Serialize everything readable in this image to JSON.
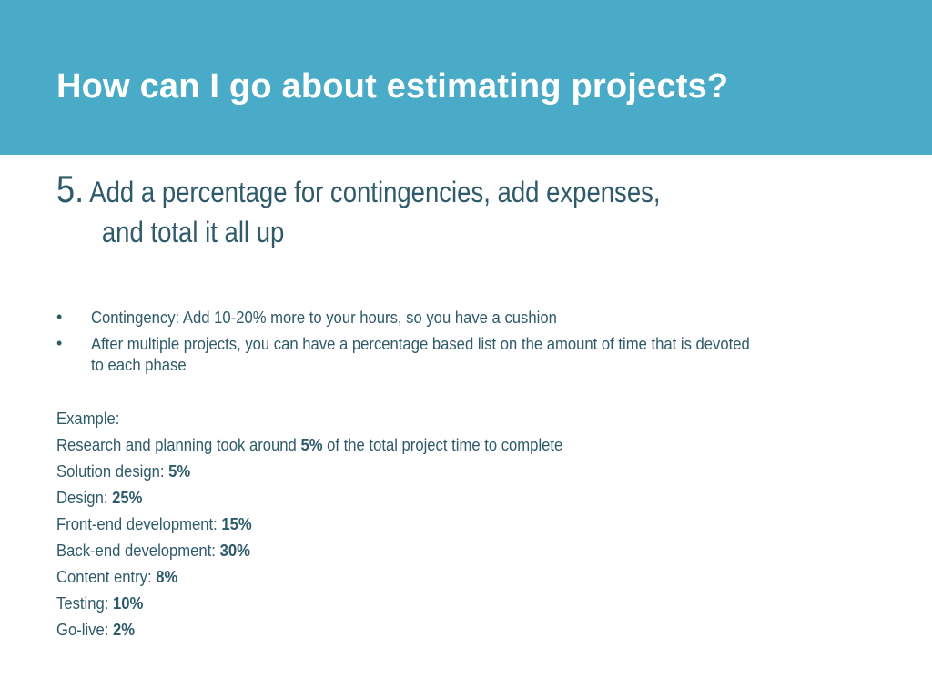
{
  "slide": {
    "title": "How can I go about estimating projects?",
    "step": {
      "number": "5.",
      "line1": "Add a percentage for contingencies, add expenses,",
      "line2": "and total it all up"
    },
    "bullets": [
      "Contingency: Add 10-20% more to your hours, so you have a cushion",
      "After multiple projects, you can have a percentage based list on the amount of time that is devoted",
      "to each phase"
    ],
    "example": {
      "label": "Example:",
      "research": {
        "prefix": "Research and planning took around ",
        "value": "5%",
        "suffix": " of the total project time to complete"
      },
      "phases": [
        {
          "label": "Solution design: ",
          "value": "5%"
        },
        {
          "label": "Design: ",
          "value": "25%"
        },
        {
          "label": "Front-end development: ",
          "value": "15%"
        },
        {
          "label": "Back-end development: ",
          "value": "30%"
        },
        {
          "label": "Content entry: ",
          "value": "8%"
        },
        {
          "label": "Testing: ",
          "value": "10%"
        },
        {
          "label": "Go-live: ",
          "value": "2%"
        }
      ]
    },
    "colors": {
      "header_band": "#4aabc8",
      "title_text": "#ffffff",
      "body_text": "#2e5a6a"
    }
  }
}
